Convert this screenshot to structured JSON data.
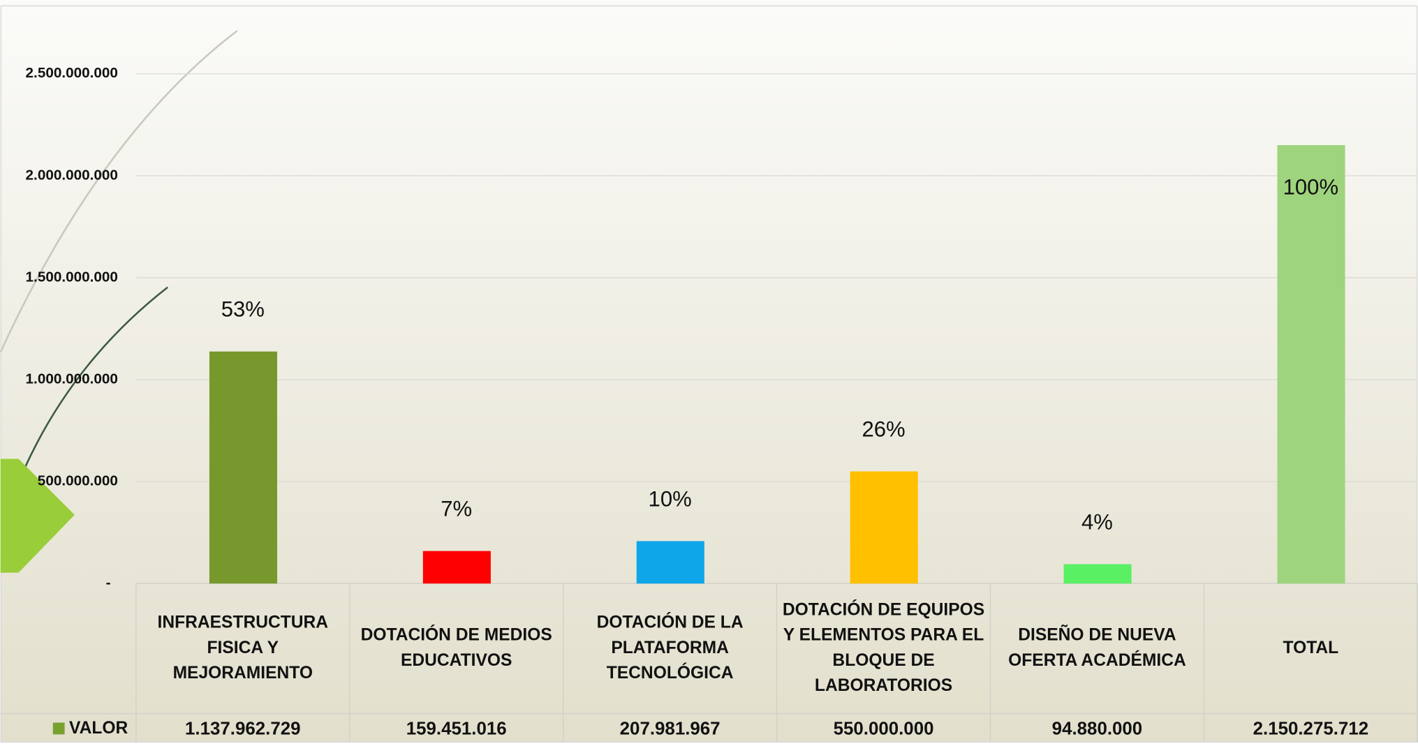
{
  "chart_data": {
    "type": "bar",
    "categories": [
      "INFRAESTRUCTURA FISICA Y MEJORAMIENTO",
      "DOTACIÓN DE MEDIOS EDUCATIVOS",
      "DOTACIÓN DE LA PLATAFORMA TECNOLÓGICA",
      "DOTACIÓN DE EQUIPOS Y ELEMENTOS PARA EL BLOQUE DE LABORATORIOS",
      "DISEÑO DE NUEVA OFERTA ACADÉMICA",
      "TOTAL"
    ],
    "series": [
      {
        "name": "VALOR",
        "color": "#77a22f",
        "colors": [
          "#77982c",
          "#ff0000",
          "#0ea5e9",
          "#ffc000",
          "#5af064",
          "#9fd47e"
        ],
        "values": [
          1137962729,
          159451016,
          207981967,
          550000000,
          94880000,
          2150275712
        ],
        "value_labels": [
          "1.137.962.729",
          "159.451.016",
          "207.981.967",
          "550.000.000",
          "94.880.000",
          "2.150.275.712"
        ],
        "percent_labels": [
          "53%",
          "7%",
          "10%",
          "26%",
          "4%",
          "100%"
        ]
      }
    ],
    "ylim": [
      0,
      2800000000
    ],
    "yticks": [
      {
        "value": 0,
        "label": "-"
      },
      {
        "value": 500000000,
        "label": "500.000.000"
      },
      {
        "value": 1000000000,
        "label": "1.000.000.000"
      },
      {
        "value": 1500000000,
        "label": "1.500.000.000"
      },
      {
        "value": 2000000000,
        "label": "2.000.000.000"
      },
      {
        "value": 2500000000,
        "label": "2.500.000.000"
      }
    ],
    "grid": true,
    "data_table": true
  }
}
